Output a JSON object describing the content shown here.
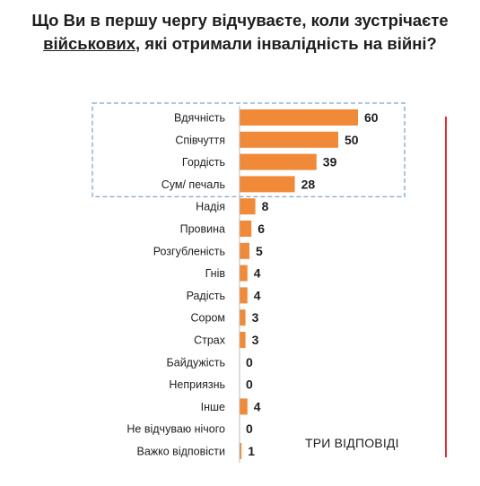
{
  "title": {
    "line1": "Що Ви в першу чергу відчуваєте, коли зустрічаєте",
    "line2_underlined": "військових",
    "line2_rest": ", які отримали інвалідність на війні?"
  },
  "note": "ТРИ ВІДПОВІДІ",
  "colors": {
    "bar": "#f08a38",
    "highlight_box": "#7fa7c9",
    "red_line": "#e0282e"
  },
  "chart_data": {
    "type": "bar",
    "orientation": "horizontal",
    "categories": [
      "Вдячність",
      "Співчуття",
      "Гордість",
      "Сум/ печаль",
      "Надія",
      "Провина",
      "Розгубленість",
      "Гнів",
      "Радість",
      "Сором",
      "Страх",
      "Байдужість",
      "Неприязнь",
      "Інше",
      "Не відчуваю нічого",
      "Важко відповісти"
    ],
    "values": [
      60,
      50,
      39,
      28,
      8,
      6,
      5,
      4,
      4,
      3,
      3,
      0,
      0,
      4,
      0,
      1
    ],
    "highlighted_categories": [
      "Вдячність",
      "Співчуття",
      "Гордість",
      "Сум/ печаль"
    ],
    "xlim": [
      0,
      60
    ],
    "grid": false,
    "legend": "none"
  }
}
